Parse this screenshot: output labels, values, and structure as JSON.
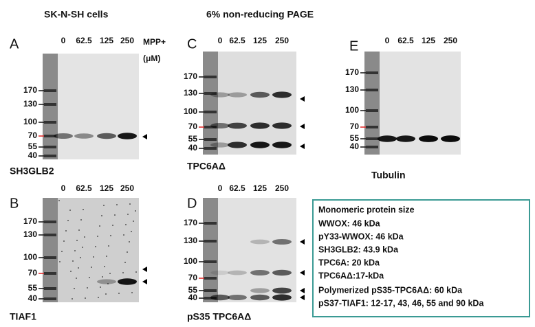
{
  "header": {
    "left": "SK-N-SH cells",
    "right": "6% non-reducing PAGE"
  },
  "unit": {
    "line1": "MPP+",
    "line2": "(μM)"
  },
  "panels": [
    {
      "letter": "A",
      "name": "SH3GLB2",
      "lanes": [
        "0",
        "62.5",
        "125",
        "250"
      ],
      "markers": [
        "170",
        "130",
        "100",
        "70",
        "55",
        "40"
      ]
    },
    {
      "letter": "B",
      "name": "TIAF1",
      "lanes": [
        "0",
        "62.5",
        "125",
        "250"
      ],
      "markers": [
        "170",
        "130",
        "100",
        "70",
        "55",
        "40"
      ]
    },
    {
      "letter": "C",
      "name": "TPC6AΔ",
      "lanes": [
        "0",
        "62.5",
        "125",
        "250"
      ],
      "markers": [
        "170",
        "130",
        "100",
        "70",
        "55",
        "40"
      ]
    },
    {
      "letter": "D",
      "name": "pS35 TPC6AΔ",
      "lanes": [
        "0",
        "62.5",
        "125",
        "250"
      ],
      "markers": [
        "170",
        "130",
        "100",
        "70",
        "55",
        "40"
      ]
    },
    {
      "letter": "E",
      "name": "Tubulin",
      "lanes": [
        "0",
        "62.5",
        "125",
        "250"
      ],
      "markers": [
        "170",
        "130",
        "100",
        "70",
        "55",
        "40"
      ]
    }
  ],
  "legend_box": {
    "lines": [
      "Monomeric protein size",
      "WWOX: 46 kDa",
      "pY33-WWOX: 46 kDa",
      "SH3GLB2: 43.9 kDa",
      "TPC6A: 20 kDa",
      "TPC6AΔ:17-kDa",
      "Polymerized  pS35-TPC6AΔ:  60 kDa",
      "pS37-TIAF1: 12-17, 43, 46, 55 and 90 kDa"
    ]
  }
}
